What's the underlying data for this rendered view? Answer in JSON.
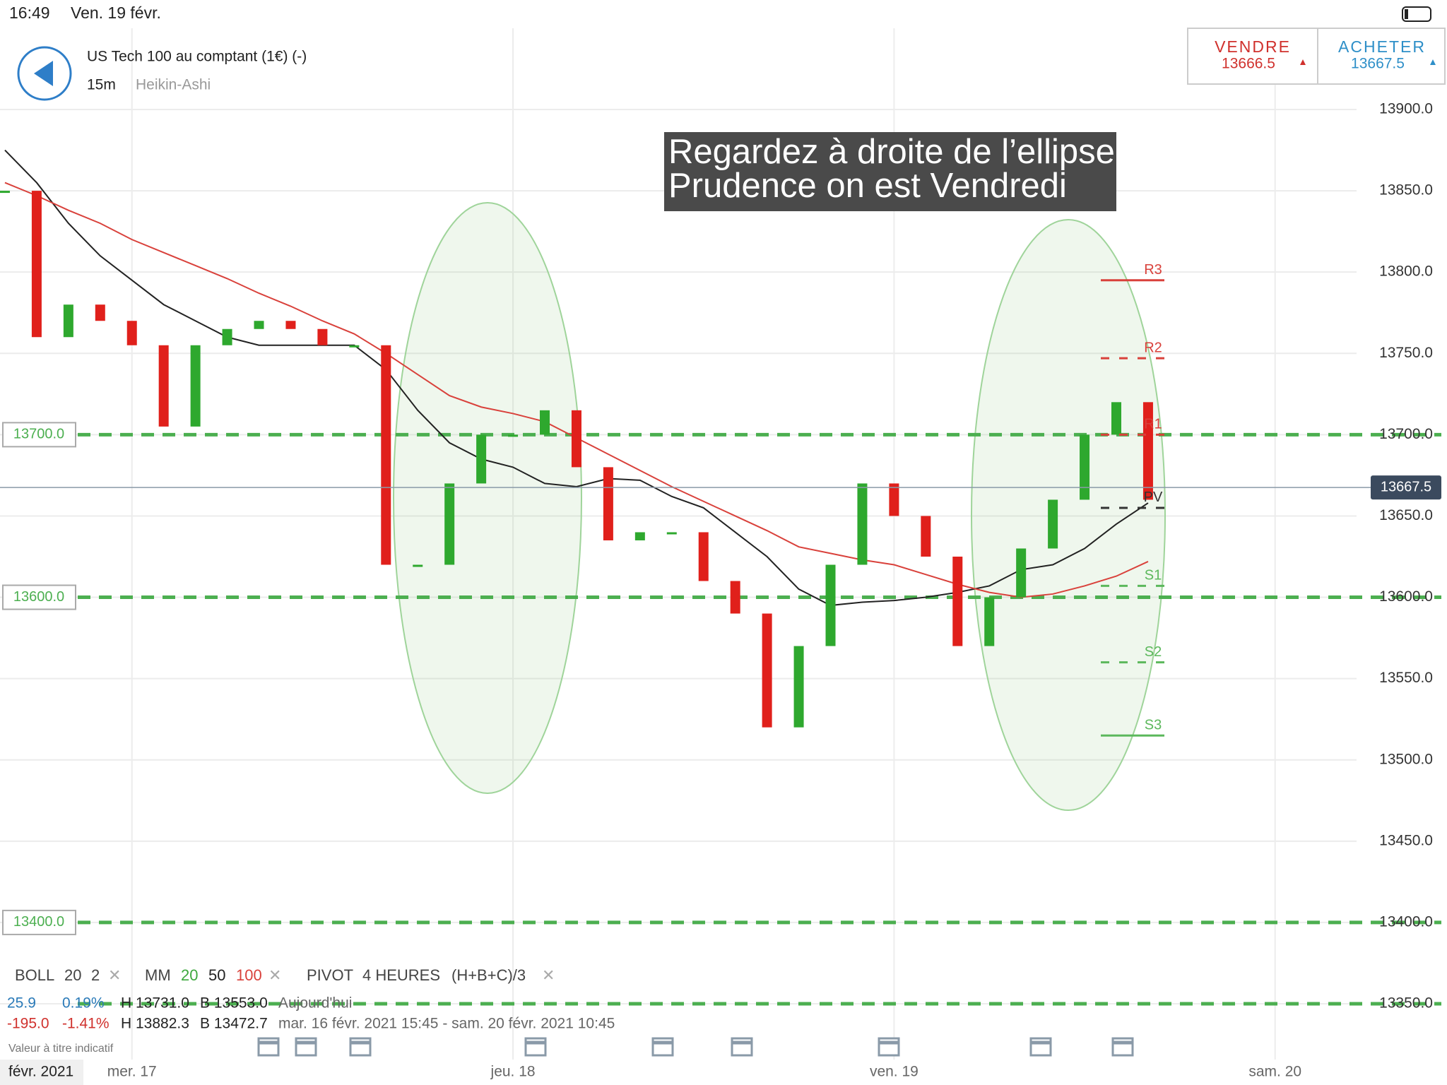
{
  "status_bar": {
    "time": "16:49",
    "date": "Ven. 19 févr."
  },
  "header": {
    "instrument": "US Tech 100 au comptant (1€) (-)",
    "timeframe": "15m",
    "chart_style": "Heikin-Ashi"
  },
  "quote": {
    "sell_label": "VENDRE",
    "sell_price": 13666.5,
    "buy_label": "ACHETER",
    "buy_price": 13667.5
  },
  "annotation": {
    "lines": [
      "Regardez à droite de l’ellipse",
      "Prudence on est Vendredi"
    ]
  },
  "indicators": [
    {
      "name": "BOLL",
      "params": [
        "20",
        "2"
      ]
    },
    {
      "name": "MM",
      "params": [
        "20",
        "50",
        "100"
      ]
    },
    {
      "name": "PIVOT",
      "params": [
        "4 HEURES",
        "(H+B+C)/3"
      ]
    }
  ],
  "stats": [
    [
      "25.9",
      "0.19%",
      "H 13731.0",
      "B 13553.0",
      "Aujourd'hui"
    ],
    [
      "-195.0",
      "-1.41%",
      "H 13882.3",
      "B 13472.7",
      "mar. 16 févr. 2021 15:45 - sam. 20 févr. 2021 10:45"
    ]
  ],
  "footnote": "Valeur à titre indicatif",
  "chart_data": {
    "type": "candlestick",
    "date_label": "févr. 2021",
    "x": [
      16,
      18,
      20,
      22,
      24,
      26,
      28,
      30,
      32,
      34,
      36,
      38,
      40,
      42,
      44,
      46,
      48,
      50,
      52,
      54,
      56,
      58,
      60,
      62,
      64,
      66,
      68,
      70,
      72,
      74,
      76,
      78,
      80,
      82,
      84,
      86,
      88
    ],
    "close": [
      13850,
      13760,
      13780,
      13770,
      13755,
      13705,
      13755,
      13765,
      13770,
      13765,
      13755,
      13755,
      13620,
      13620,
      13670,
      13700,
      13700,
      13715,
      13680,
      13635,
      13640,
      13640,
      13610,
      13590,
      13520,
      13570,
      13620,
      13670,
      13650,
      13625,
      13570,
      13600,
      13630,
      13660,
      13700,
      13720,
      13660
    ],
    "up_color": "#2ea82e",
    "down_color": "#e0201b",
    "moving_averages": [
      {
        "color": "#222222",
        "values": [
          13875,
          13855,
          13830,
          13810,
          13795,
          13780,
          13770,
          13760,
          13755,
          13755,
          13755,
          13755,
          13740,
          13715,
          13695,
          13685,
          13680,
          13670,
          13668,
          13673,
          13672,
          13662,
          13655,
          13640,
          13625,
          13605,
          13595,
          13597,
          13598,
          13600,
          13603,
          13607,
          13617,
          13620,
          13630,
          13645,
          13658
        ]
      },
      {
        "color": "#d9413b",
        "values": [
          13855,
          13847,
          13838,
          13830,
          13820,
          13812,
          13804,
          13796,
          13787,
          13779,
          13770,
          13762,
          13750,
          13737,
          13724,
          13717,
          13713,
          13708,
          13698,
          13688,
          13678,
          13668,
          13659,
          13650,
          13641,
          13631,
          13627,
          13623,
          13620,
          13614,
          13608,
          13603,
          13600,
          13602,
          13607,
          13613,
          13622
        ]
      }
    ],
    "xlim": [
      15.69,
      101.13
    ],
    "xticks": [
      {
        "value": 24,
        "label": "mer. 17"
      },
      {
        "value": 48,
        "label": "jeu. 18"
      },
      {
        "value": 72,
        "label": "ven. 19"
      },
      {
        "value": 96,
        "label": "sam. 20"
      }
    ],
    "ylim": [
      13350,
      13900
    ],
    "yticks": [
      {
        "value": 13350,
        "label": "13350.0"
      },
      {
        "value": 13400,
        "label": "13400.0"
      },
      {
        "value": 13450,
        "label": "13450.0"
      },
      {
        "value": 13500,
        "label": "13500.0"
      },
      {
        "value": 13550,
        "label": "13550.0"
      },
      {
        "value": 13600,
        "label": "13600.0"
      },
      {
        "value": 13650,
        "label": "13650.0"
      },
      {
        "value": 13700,
        "label": "13700.0"
      },
      {
        "value": 13750,
        "label": "13750.0"
      },
      {
        "value": 13800,
        "label": "13800.0"
      },
      {
        "value": 13850,
        "label": "13850.0"
      },
      {
        "value": 13900,
        "label": "13900.0"
      }
    ],
    "grid": true,
    "levels": [
      {
        "value": 13700,
        "label": "13700.0"
      },
      {
        "value": 13600,
        "label": "13600.0"
      },
      {
        "value": 13400,
        "label": "13400.0"
      },
      {
        "value": 13350
      }
    ],
    "level_color": "#4caf50",
    "pivots": [
      {
        "label": "R3",
        "value": 13795,
        "color": "#d9413b",
        "dashed": false
      },
      {
        "label": "R2",
        "value": 13747,
        "color": "#d9413b",
        "dashed": true
      },
      {
        "label": "R1",
        "value": 13700,
        "color": "#d9413b",
        "dashed": true
      },
      {
        "label": "PV",
        "value": 13655,
        "color": "#333333",
        "dashed": true
      },
      {
        "label": "S1",
        "value": 13607,
        "color": "#5cb85c",
        "dashed": true
      },
      {
        "label": "S2",
        "value": 13560,
        "color": "#5cb85c",
        "dashed": true
      },
      {
        "label": "S3",
        "value": 13515,
        "color": "#5cb85c",
        "dashed": false
      }
    ],
    "last_price": 13667.5
  }
}
